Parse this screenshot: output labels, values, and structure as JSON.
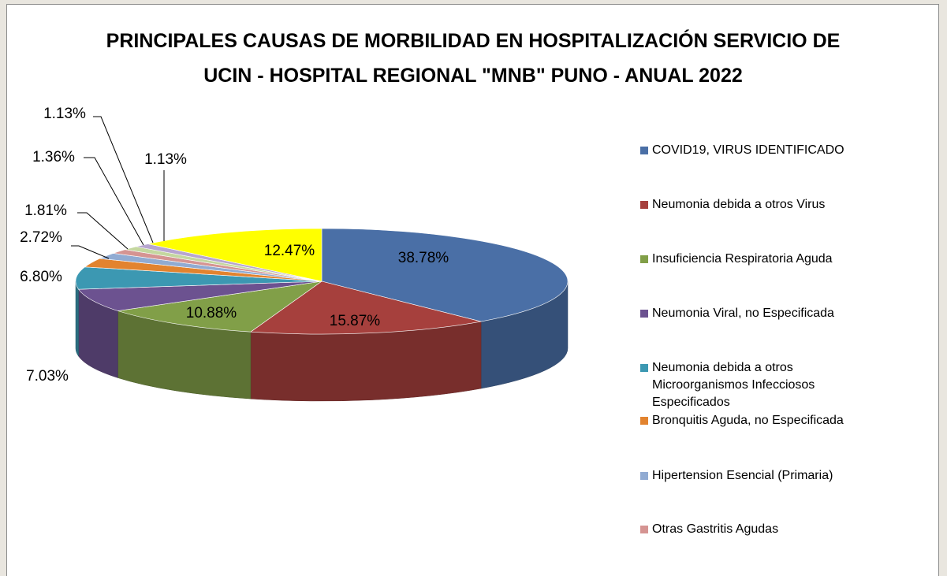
{
  "chart_data": {
    "type": "pie",
    "title": "PRINCIPALES CAUSAS DE MORBILIDAD EN HOSPITALIZACIÓN SERVICIO DE UCIN - HOSPITAL REGIONAL \"MNB\" PUNO - ANUAL 2022",
    "categories": [
      "COVID19, VIRUS IDENTIFICADO",
      "Neumonia debida a otros Virus",
      "Insuficiencia Respiratoria Aguda",
      "Neumonia Viral, no Especificada",
      "Neumonia debida a otros Microorganismos Infecciosos Especificados",
      "Bronquitis Aguda, no Especificada",
      "Hipertension Esencial (Primaria)",
      "Otras Gastritis Agudas",
      null,
      null,
      null
    ],
    "values": [
      38.78,
      15.87,
      10.88,
      7.03,
      6.8,
      2.72,
      1.81,
      1.36,
      1.13,
      1.13,
      12.47
    ],
    "value_labels": [
      "38.78%",
      "15.87%",
      "10.88%",
      "7.03%",
      "6.80%",
      "2.72%",
      "1.81%",
      "1.36%",
      "1.13%",
      "1.13%",
      "12.47%"
    ],
    "colors": [
      "#4a6fa6",
      "#a6403d",
      "#819f48",
      "#6c5290",
      "#3c98b2",
      "#e2832f",
      "#91abd2",
      "#d59492",
      "#c4d79f",
      "#b7a6cf",
      "#ffff00"
    ],
    "legend": "right"
  }
}
